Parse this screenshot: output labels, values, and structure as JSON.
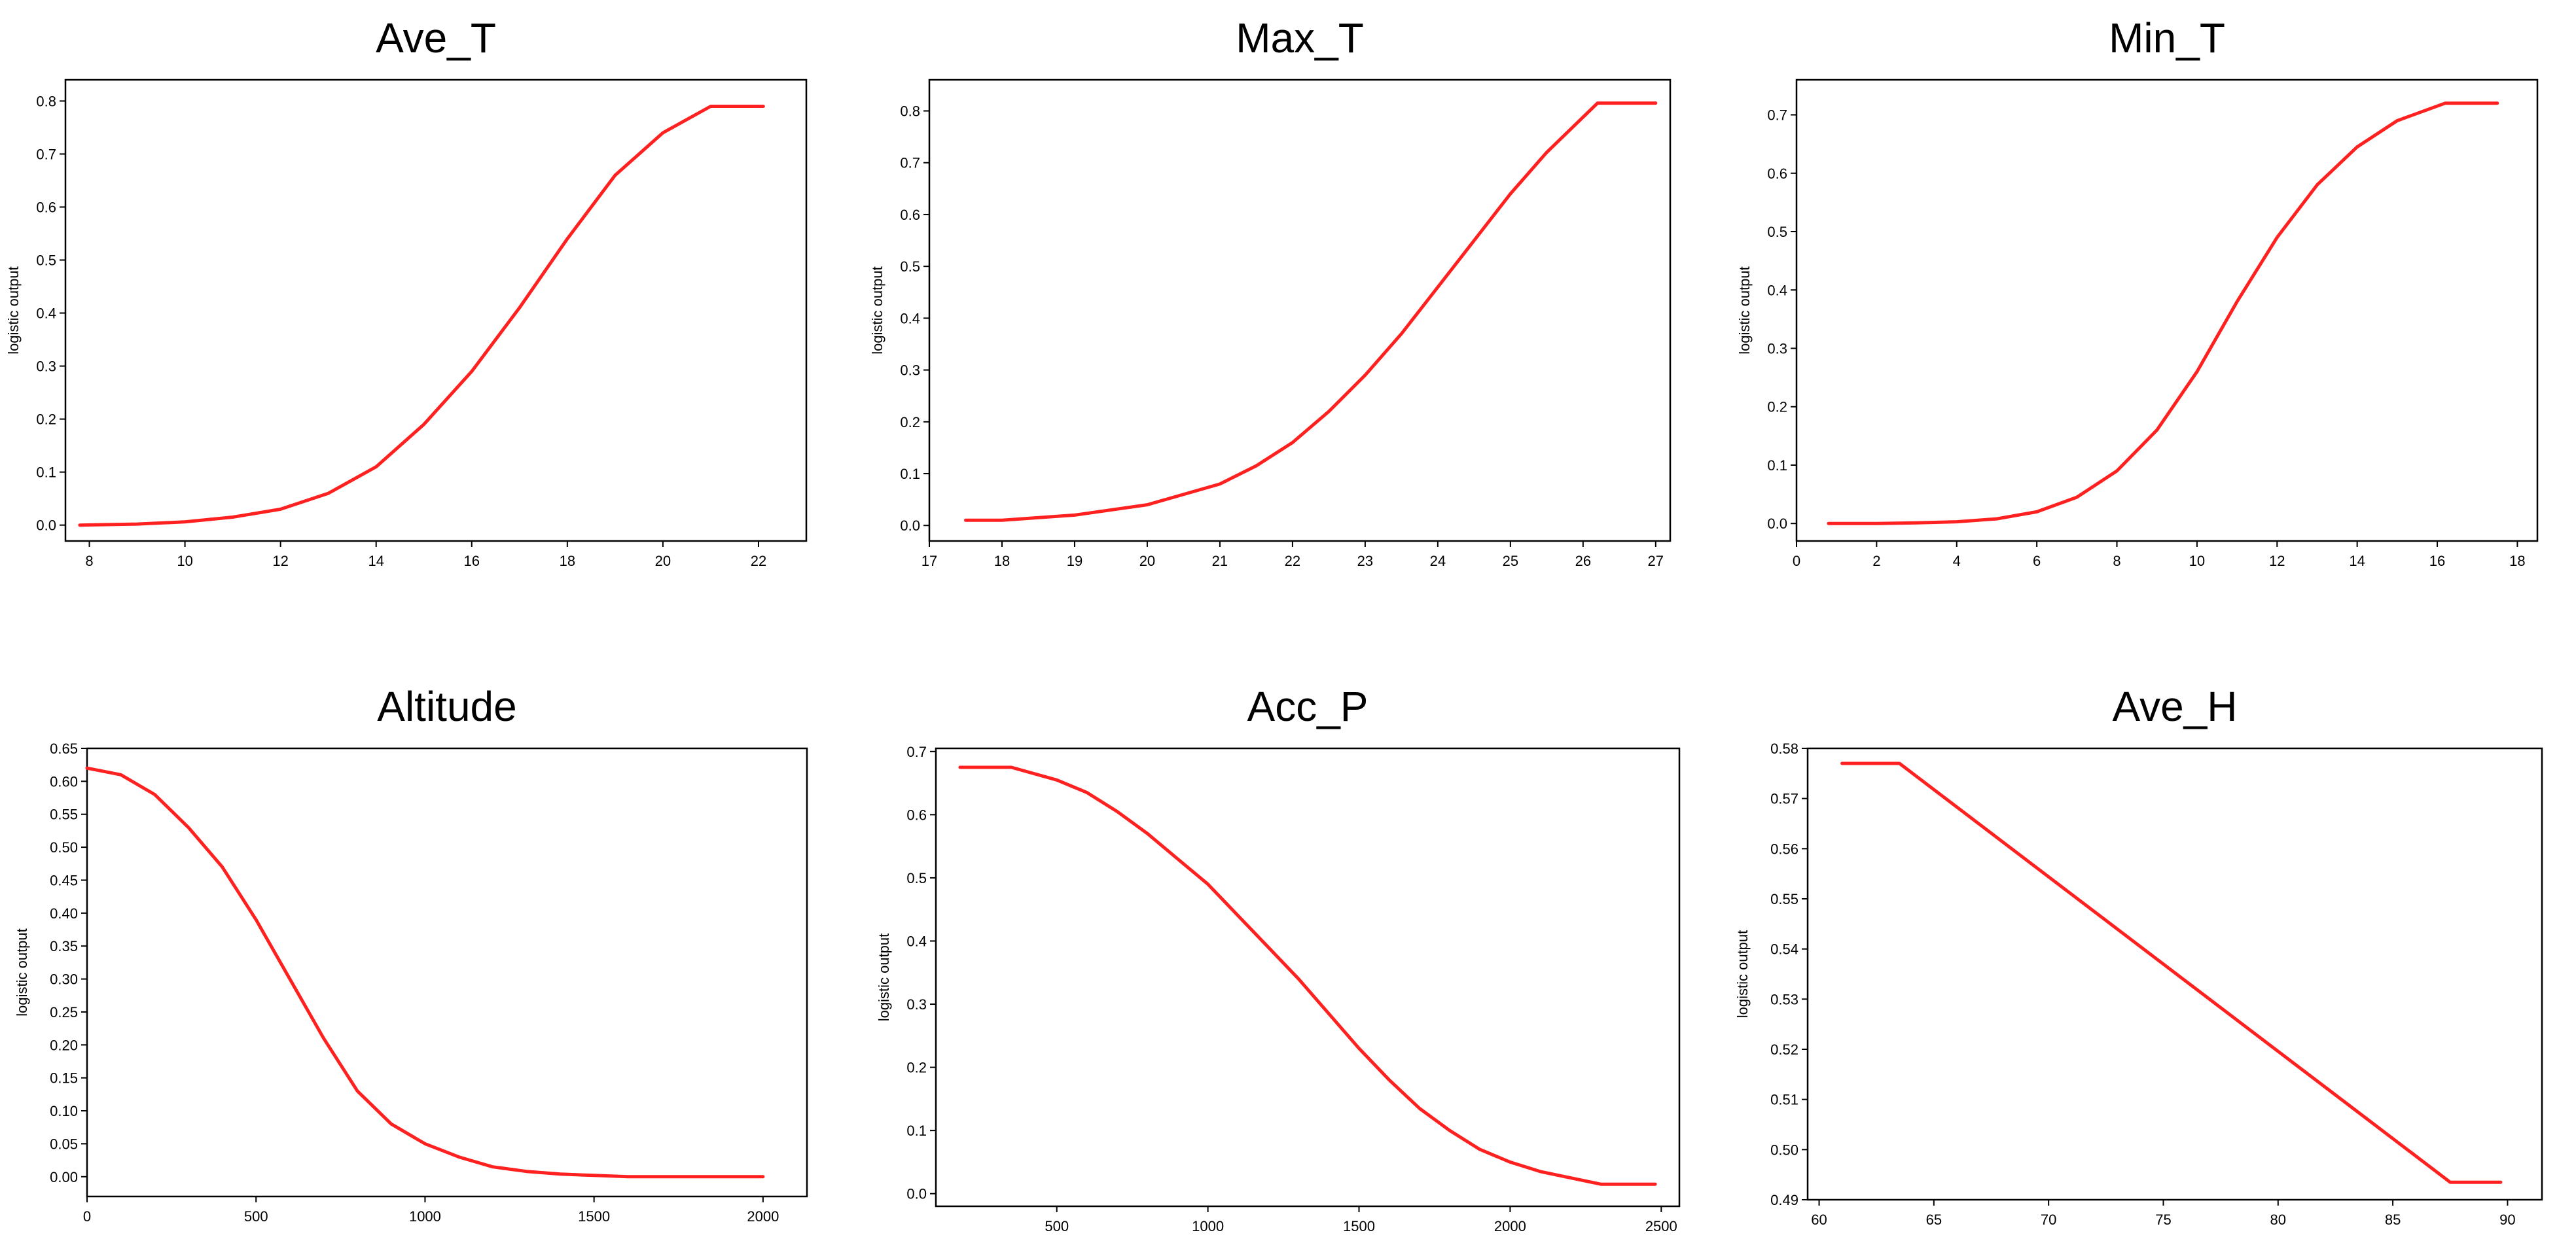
{
  "chart_data": [
    {
      "type": "line",
      "title": "Ave_T",
      "xlabel": "",
      "ylabel": "logistic output",
      "xlim": [
        7.5,
        23
      ],
      "ylim": [
        -0.03,
        0.84
      ],
      "xticks": [
        8,
        10,
        12,
        14,
        16,
        18,
        20,
        22
      ],
      "yticks": [
        0.0,
        0.1,
        0.2,
        0.3,
        0.4,
        0.5,
        0.6,
        0.7,
        0.8
      ],
      "ytick_decimals": 1,
      "grid": true,
      "series": [
        {
          "color": "#ff2020",
          "x": [
            7.8,
            9,
            10,
            11,
            12,
            13,
            14,
            15,
            16,
            17,
            18,
            19,
            20,
            21,
            22.1
          ],
          "y": [
            0.0,
            0.002,
            0.006,
            0.015,
            0.03,
            0.06,
            0.11,
            0.19,
            0.29,
            0.41,
            0.54,
            0.66,
            0.74,
            0.79,
            0.79
          ]
        }
      ]
    },
    {
      "type": "line",
      "title": "Max_T",
      "xlabel": "",
      "ylabel": "logistic output",
      "xlim": [
        17,
        27.2
      ],
      "ylim": [
        -0.03,
        0.86
      ],
      "xticks": [
        17,
        18,
        19,
        20,
        21,
        22,
        23,
        24,
        25,
        26,
        27
      ],
      "yticks": [
        0.0,
        0.1,
        0.2,
        0.3,
        0.4,
        0.5,
        0.6,
        0.7,
        0.8
      ],
      "ytick_decimals": 1,
      "grid": true,
      "series": [
        {
          "color": "#ff2020",
          "x": [
            17.5,
            18,
            19,
            20,
            21,
            21.5,
            22,
            22.5,
            23,
            23.5,
            24,
            24.5,
            25,
            25.5,
            26.2,
            27
          ],
          "y": [
            0.01,
            0.01,
            0.02,
            0.04,
            0.08,
            0.115,
            0.16,
            0.22,
            0.29,
            0.37,
            0.46,
            0.55,
            0.64,
            0.72,
            0.815,
            0.815
          ]
        }
      ]
    },
    {
      "type": "line",
      "title": "Min_T",
      "xlabel": "",
      "ylabel": "logistic output",
      "xlim": [
        0,
        18.5
      ],
      "ylim": [
        -0.03,
        0.76
      ],
      "xticks": [
        0,
        2,
        4,
        6,
        8,
        10,
        12,
        14,
        16,
        18
      ],
      "yticks": [
        0.0,
        0.1,
        0.2,
        0.3,
        0.4,
        0.5,
        0.6,
        0.7
      ],
      "ytick_decimals": 1,
      "grid": true,
      "series": [
        {
          "color": "#ff2020",
          "x": [
            0.8,
            2,
            3,
            4,
            5,
            6,
            7,
            8,
            9,
            10,
            11,
            12,
            13,
            14,
            15,
            16.2,
            17.5
          ],
          "y": [
            0.0,
            0.0,
            0.001,
            0.003,
            0.008,
            0.02,
            0.045,
            0.09,
            0.16,
            0.26,
            0.38,
            0.49,
            0.58,
            0.645,
            0.69,
            0.72,
            0.72
          ]
        }
      ]
    },
    {
      "type": "line",
      "title": "Altitude",
      "xlabel": "",
      "ylabel": "logistic output",
      "xlim": [
        0,
        2130
      ],
      "ylim": [
        -0.03,
        0.65
      ],
      "xticks": [
        0,
        500,
        1000,
        1500,
        2000
      ],
      "yticks": [
        0.0,
        0.05,
        0.1,
        0.15,
        0.2,
        0.25,
        0.3,
        0.35,
        0.4,
        0.45,
        0.5,
        0.55,
        0.6,
        0.65
      ],
      "ytick_decimals": 2,
      "grid": true,
      "series": [
        {
          "color": "#ff2020",
          "x": [
            0,
            100,
            200,
            300,
            400,
            500,
            600,
            700,
            800,
            900,
            1000,
            1100,
            1200,
            1300,
            1400,
            1500,
            1600,
            2000
          ],
          "y": [
            0.62,
            0.61,
            0.58,
            0.53,
            0.47,
            0.39,
            0.3,
            0.21,
            0.13,
            0.08,
            0.05,
            0.03,
            0.015,
            0.008,
            0.004,
            0.002,
            0.0,
            0.0
          ]
        }
      ]
    },
    {
      "type": "line",
      "title": "Acc_P",
      "xlabel": "",
      "ylabel": "logistic output",
      "xlim": [
        100,
        2560
      ],
      "ylim": [
        -0.02,
        0.705
      ],
      "xticks": [
        500,
        1000,
        1500,
        2000,
        2500
      ],
      "yticks": [
        0.0,
        0.1,
        0.2,
        0.3,
        0.4,
        0.5,
        0.6,
        0.7
      ],
      "ytick_decimals": 1,
      "grid": true,
      "series": [
        {
          "color": "#ff2020",
          "x": [
            180,
            350,
            500,
            600,
            700,
            800,
            900,
            1000,
            1100,
            1200,
            1300,
            1400,
            1500,
            1600,
            1700,
            1800,
            1900,
            2000,
            2100,
            2200,
            2300,
            2480
          ],
          "y": [
            0.675,
            0.675,
            0.655,
            0.635,
            0.605,
            0.57,
            0.53,
            0.49,
            0.44,
            0.39,
            0.34,
            0.285,
            0.23,
            0.18,
            0.135,
            0.1,
            0.07,
            0.05,
            0.035,
            0.025,
            0.015,
            0.015
          ]
        }
      ]
    },
    {
      "type": "line",
      "title": "Ave_H",
      "xlabel": "",
      "ylabel": "logistic output",
      "xlim": [
        59.5,
        91.5
      ],
      "ylim": [
        0.49,
        0.58
      ],
      "xticks": [
        60,
        65,
        70,
        75,
        80,
        85,
        90
      ],
      "yticks": [
        0.49,
        0.5,
        0.51,
        0.52,
        0.53,
        0.54,
        0.55,
        0.56,
        0.57,
        0.58
      ],
      "ytick_decimals": 2,
      "grid": true,
      "series": [
        {
          "color": "#ff2020",
          "x": [
            61,
            63.5,
            87.5,
            89.7
          ],
          "y": [
            0.577,
            0.577,
            0.4935,
            0.4935
          ]
        }
      ]
    }
  ]
}
